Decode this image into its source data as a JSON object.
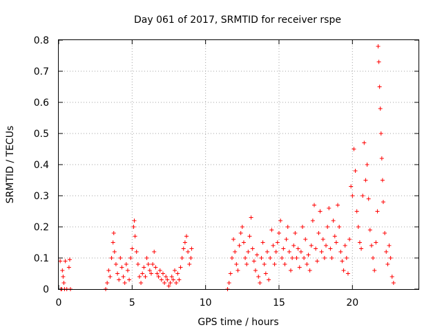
{
  "chart_data": {
    "type": "scatter",
    "title": "Day 061 of 2017, SRMTID for receiver rspe",
    "xlabel": "GPS time / hours",
    "ylabel": "SRMTID / TECUs",
    "xlim": [
      0,
      24.5
    ],
    "ylim": [
      0,
      0.8
    ],
    "x_ticks": [
      0,
      5,
      10,
      15,
      20
    ],
    "x_tick_labels": [
      "0",
      "5",
      "10",
      "15",
      "20"
    ],
    "y_ticks": [
      0,
      0.1,
      0.2,
      0.3,
      0.4,
      0.5,
      0.6,
      0.7,
      0.8
    ],
    "y_tick_labels": [
      "0",
      "0.1",
      "0.2",
      "0.3",
      "0.4",
      "0.5",
      "0.6",
      "0.7",
      "0.8"
    ],
    "grid": true,
    "marker": "plus",
    "colors": {
      "series": "#ff0000",
      "grid": "#a0a0a0",
      "axes": "#000000"
    },
    "series": [
      {
        "name": "SRMTID",
        "points": [
          [
            0.1,
            0.09
          ],
          [
            0.15,
            0.0
          ],
          [
            0.2,
            0.0
          ],
          [
            0.25,
            0.06
          ],
          [
            0.3,
            0.04
          ],
          [
            0.35,
            0.02
          ],
          [
            0.4,
            0.0
          ],
          [
            0.45,
            0.09
          ],
          [
            0.55,
            0.0
          ],
          [
            0.7,
            0.07
          ],
          [
            0.75,
            0.095
          ],
          [
            0.8,
            0.0
          ],
          [
            3.2,
            0.0
          ],
          [
            3.3,
            0.02
          ],
          [
            3.4,
            0.06
          ],
          [
            3.5,
            0.04
          ],
          [
            3.6,
            0.1
          ],
          [
            3.7,
            0.15
          ],
          [
            3.75,
            0.18
          ],
          [
            3.8,
            0.12
          ],
          [
            3.9,
            0.08
          ],
          [
            4.0,
            0.05
          ],
          [
            4.1,
            0.03
          ],
          [
            4.2,
            0.1
          ],
          [
            4.3,
            0.07
          ],
          [
            4.4,
            0.04
          ],
          [
            4.5,
            0.02
          ],
          [
            4.6,
            0.08
          ],
          [
            4.7,
            0.06
          ],
          [
            4.8,
            0.03
          ],
          [
            4.9,
            0.1
          ],
          [
            5.0,
            0.13
          ],
          [
            5.1,
            0.2
          ],
          [
            5.15,
            0.22
          ],
          [
            5.2,
            0.17
          ],
          [
            5.3,
            0.12
          ],
          [
            5.4,
            0.08
          ],
          [
            5.5,
            0.04
          ],
          [
            5.6,
            0.02
          ],
          [
            5.7,
            0.05
          ],
          [
            5.8,
            0.07
          ],
          [
            5.9,
            0.04
          ],
          [
            6.0,
            0.1
          ],
          [
            6.1,
            0.08
          ],
          [
            6.2,
            0.06
          ],
          [
            6.3,
            0.05
          ],
          [
            6.4,
            0.08
          ],
          [
            6.5,
            0.12
          ],
          [
            6.6,
            0.07
          ],
          [
            6.7,
            0.05
          ],
          [
            6.8,
            0.04
          ],
          [
            6.9,
            0.06
          ],
          [
            7.0,
            0.03
          ],
          [
            7.1,
            0.05
          ],
          [
            7.2,
            0.02
          ],
          [
            7.3,
            0.04
          ],
          [
            7.4,
            0.03
          ],
          [
            7.5,
            0.01
          ],
          [
            7.6,
            0.02
          ],
          [
            7.7,
            0.04
          ],
          [
            7.8,
            0.03
          ],
          [
            7.9,
            0.06
          ],
          [
            8.0,
            0.02
          ],
          [
            8.1,
            0.05
          ],
          [
            8.2,
            0.03
          ],
          [
            8.3,
            0.07
          ],
          [
            8.4,
            0.1
          ],
          [
            8.5,
            0.13
          ],
          [
            8.6,
            0.15
          ],
          [
            8.7,
            0.17
          ],
          [
            8.8,
            0.12
          ],
          [
            8.9,
            0.08
          ],
          [
            9.0,
            0.1
          ],
          [
            9.05,
            0.13
          ],
          [
            11.5,
            0.0
          ],
          [
            11.6,
            0.02
          ],
          [
            11.7,
            0.05
          ],
          [
            11.8,
            0.1
          ],
          [
            11.9,
            0.16
          ],
          [
            12.0,
            0.12
          ],
          [
            12.1,
            0.08
          ],
          [
            12.2,
            0.06
          ],
          [
            12.3,
            0.14
          ],
          [
            12.4,
            0.18
          ],
          [
            12.5,
            0.2
          ],
          [
            12.6,
            0.15
          ],
          [
            12.7,
            0.1
          ],
          [
            12.8,
            0.08
          ],
          [
            12.9,
            0.12
          ],
          [
            13.0,
            0.17
          ],
          [
            13.1,
            0.23
          ],
          [
            13.2,
            0.13
          ],
          [
            13.3,
            0.09
          ],
          [
            13.4,
            0.06
          ],
          [
            13.5,
            0.11
          ],
          [
            13.6,
            0.04
          ],
          [
            13.7,
            0.02
          ],
          [
            13.8,
            0.1
          ],
          [
            13.9,
            0.15
          ],
          [
            14.0,
            0.08
          ],
          [
            14.1,
            0.05
          ],
          [
            14.2,
            0.12
          ],
          [
            14.3,
            0.03
          ],
          [
            14.4,
            0.1
          ],
          [
            14.5,
            0.19
          ],
          [
            14.6,
            0.14
          ],
          [
            14.7,
            0.08
          ],
          [
            14.8,
            0.12
          ],
          [
            14.9,
            0.15
          ],
          [
            15.0,
            0.18
          ],
          [
            15.1,
            0.22
          ],
          [
            15.2,
            0.1
          ],
          [
            15.3,
            0.13
          ],
          [
            15.4,
            0.08
          ],
          [
            15.5,
            0.16
          ],
          [
            15.6,
            0.2
          ],
          [
            15.7,
            0.12
          ],
          [
            15.8,
            0.06
          ],
          [
            15.9,
            0.1
          ],
          [
            16.0,
            0.14
          ],
          [
            16.1,
            0.18
          ],
          [
            16.2,
            0.1
          ],
          [
            16.3,
            0.13
          ],
          [
            16.4,
            0.07
          ],
          [
            16.5,
            0.12
          ],
          [
            16.6,
            0.2
          ],
          [
            16.7,
            0.1
          ],
          [
            16.8,
            0.16
          ],
          [
            16.9,
            0.08
          ],
          [
            17.0,
            0.11
          ],
          [
            17.1,
            0.06
          ],
          [
            17.2,
            0.14
          ],
          [
            17.3,
            0.22
          ],
          [
            17.4,
            0.27
          ],
          [
            17.5,
            0.13
          ],
          [
            17.6,
            0.09
          ],
          [
            17.7,
            0.18
          ],
          [
            17.8,
            0.25
          ],
          [
            17.9,
            0.12
          ],
          [
            18.0,
            0.16
          ],
          [
            18.1,
            0.1
          ],
          [
            18.2,
            0.14
          ],
          [
            18.3,
            0.2
          ],
          [
            18.4,
            0.26
          ],
          [
            18.5,
            0.13
          ],
          [
            18.6,
            0.1
          ],
          [
            18.7,
            0.22
          ],
          [
            18.8,
            0.17
          ],
          [
            18.9,
            0.15
          ],
          [
            19.0,
            0.27
          ],
          [
            19.1,
            0.2
          ],
          [
            19.2,
            0.12
          ],
          [
            19.3,
            0.09
          ],
          [
            19.4,
            0.06
          ],
          [
            19.5,
            0.14
          ],
          [
            19.6,
            0.1
          ],
          [
            19.7,
            0.05
          ],
          [
            19.8,
            0.16
          ],
          [
            19.9,
            0.33
          ],
          [
            20.0,
            0.3
          ],
          [
            20.1,
            0.45
          ],
          [
            20.2,
            0.38
          ],
          [
            20.3,
            0.25
          ],
          [
            20.4,
            0.2
          ],
          [
            20.5,
            0.15
          ],
          [
            20.6,
            0.13
          ],
          [
            20.7,
            0.3
          ],
          [
            20.8,
            0.47
          ],
          [
            20.9,
            0.35
          ],
          [
            21.0,
            0.4
          ],
          [
            21.1,
            0.29
          ],
          [
            21.2,
            0.19
          ],
          [
            21.3,
            0.14
          ],
          [
            21.4,
            0.1
          ],
          [
            21.5,
            0.06
          ],
          [
            21.6,
            0.15
          ],
          [
            21.7,
            0.25
          ],
          [
            21.75,
            0.78
          ],
          [
            21.8,
            0.73
          ],
          [
            21.85,
            0.65
          ],
          [
            21.9,
            0.58
          ],
          [
            21.95,
            0.5
          ],
          [
            22.0,
            0.42
          ],
          [
            22.05,
            0.35
          ],
          [
            22.1,
            0.28
          ],
          [
            22.2,
            0.18
          ],
          [
            22.3,
            0.12
          ],
          [
            22.4,
            0.08
          ],
          [
            22.5,
            0.14
          ],
          [
            22.6,
            0.1
          ],
          [
            22.7,
            0.04
          ],
          [
            22.8,
            0.02
          ]
        ]
      }
    ]
  }
}
